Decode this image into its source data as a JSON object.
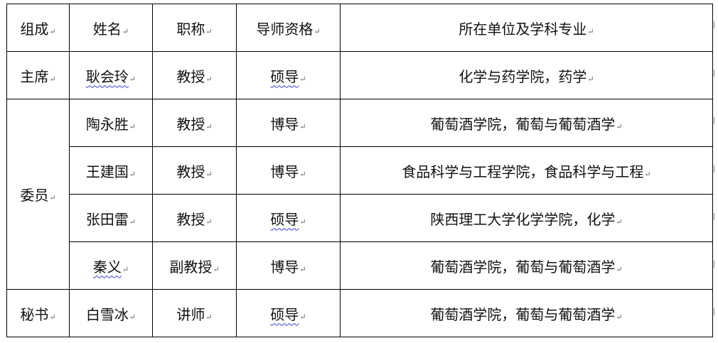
{
  "headers": [
    "组成",
    "姓名",
    "职称",
    "导师资格",
    "所在单位及学科专业"
  ],
  "rows": [
    {
      "group": "主席",
      "name": "耿会玲",
      "name_flagged": true,
      "title": "教授",
      "qual": "硕导",
      "qual_flagged": true,
      "unit": "化学与药学院，药学"
    },
    {
      "group": "委员",
      "name": "陶永胜",
      "title": "教授",
      "qual": "博导",
      "unit": "葡萄酒学院，葡萄与葡萄酒学"
    },
    {
      "name": "王建国",
      "title": "教授",
      "qual": "博导",
      "unit": "食品科学与工程学院，食品科学与工程"
    },
    {
      "name": "张田雷",
      "title": "教授",
      "qual": "硕导",
      "qual_flagged": true,
      "unit": "陕西理工大学化学学院，化学"
    },
    {
      "name": "秦义",
      "name_flagged": true,
      "title": "副教授",
      "qual": "博导",
      "unit": "葡萄酒学院，葡萄与葡萄酒学"
    },
    {
      "group": "秘书",
      "name": "白雪冰",
      "title": "讲师",
      "qual": "硕导",
      "qual_flagged": true,
      "unit": "葡萄酒学院，葡萄与葡萄酒学"
    }
  ],
  "paragraph_mark": "↵"
}
